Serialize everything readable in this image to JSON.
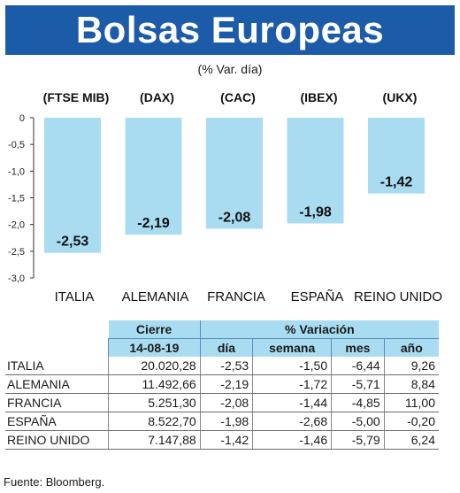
{
  "header": {
    "title": "Bolsas Europeas",
    "subtitle": "(% Var. día)"
  },
  "chart_data": {
    "type": "bar",
    "categories": [
      "ITALIA",
      "ALEMANIA",
      "FRANCIA",
      "ESPAÑA",
      "REINO UNIDO"
    ],
    "index_labels": [
      "(FTSE MIB)",
      "(DAX)",
      "(CAC)",
      "(IBEX)",
      "(UKX)"
    ],
    "values": [
      -2.53,
      -2.19,
      -2.08,
      -1.98,
      -1.42
    ],
    "value_labels": [
      "-2,53",
      "-2,19",
      "-2,08",
      "-1,98",
      "-1,42"
    ],
    "yticks": [
      "0",
      "-0,5",
      "-1,0",
      "-1,5",
      "-2,0",
      "-2,5",
      "-3,0"
    ],
    "ylim": [
      -3.0,
      0
    ],
    "bar_color": "#a9dcf1"
  },
  "table": {
    "header_cierre": "Cierre",
    "header_variacion": "% Variación",
    "date": "14-08-19",
    "columns": [
      "día",
      "semana",
      "mes",
      "año"
    ],
    "rows": [
      {
        "name": "ITALIA",
        "cierre": "20.020,28",
        "dia": "-2,53",
        "semana": "-1,50",
        "mes": "-6,44",
        "ano": "9,26"
      },
      {
        "name": "ALEMANIA",
        "cierre": "11.492,66",
        "dia": "-2,19",
        "semana": "-1,72",
        "mes": "-5,71",
        "ano": "8,84"
      },
      {
        "name": "FRANCIA",
        "cierre": "5.251,30",
        "dia": "-2,08",
        "semana": "-1,44",
        "mes": "-4,85",
        "ano": "11,00"
      },
      {
        "name": "ESPAÑA",
        "cierre": "8.522,70",
        "dia": "-1,98",
        "semana": "-2,68",
        "mes": "-5,00",
        "ano": "-0,20"
      },
      {
        "name": "REINO UNIDO",
        "cierre": "7.147,88",
        "dia": "-1,42",
        "semana": "-1,46",
        "mes": "-5,79",
        "ano": "6,24"
      }
    ]
  },
  "footer": {
    "source": "Fuente: Bloomberg."
  },
  "colors": {
    "title_bg": "#1c5ba8",
    "header_bg": "#a9dcf1"
  }
}
